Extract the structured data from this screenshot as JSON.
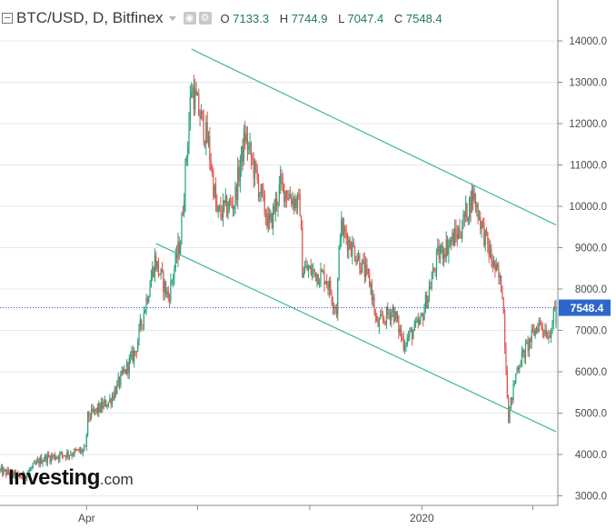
{
  "header": {
    "symbol": "BTC/USD, D, Bitfinex",
    "open_label": "O",
    "open": "7133.3",
    "high_label": "H",
    "high": "7744.9",
    "low_label": "L",
    "low": "7047.4",
    "close_label": "C",
    "close": "7548.4"
  },
  "logo": {
    "brand": "Investing",
    "suffix": ".com"
  },
  "colors": {
    "up": "#26a17a",
    "down": "#e0544d",
    "channel": "#3fb996",
    "price_line": "#2b4fd1",
    "grid": "#e8e8e8"
  },
  "chart_data": {
    "type": "candlestick",
    "title": "BTC/USD, D, Bitfinex",
    "ylim": [
      2800,
      14600
    ],
    "y_ticks": [
      3000.0,
      4000.0,
      5000.0,
      6000.0,
      7000.0,
      8000.0,
      9000.0,
      10000.0,
      11000.0,
      12000.0,
      13000.0,
      14000.0
    ],
    "x_labels": [
      "Apr",
      "2020"
    ],
    "last_price": 7548.4,
    "ohlc_last": {
      "open": 7133.3,
      "high": 7744.9,
      "low": 7047.4,
      "close": 7548.4
    },
    "close_path": [
      {
        "date": "2019-01-20",
        "close": 3600
      },
      {
        "date": "2019-02-07",
        "close": 3450
      },
      {
        "date": "2019-02-24",
        "close": 3900
      },
      {
        "date": "2019-03-31",
        "close": 4100
      },
      {
        "date": "2019-04-02",
        "close": 4900
      },
      {
        "date": "2019-04-20",
        "close": 5300
      },
      {
        "date": "2019-05-11",
        "close": 6500
      },
      {
        "date": "2019-05-27",
        "close": 8700
      },
      {
        "date": "2019-06-07",
        "close": 7800
      },
      {
        "date": "2019-06-17",
        "close": 9200
      },
      {
        "date": "2019-06-26",
        "close": 12900
      },
      {
        "date": "2019-07-10",
        "close": 11500
      },
      {
        "date": "2019-07-17",
        "close": 9800
      },
      {
        "date": "2019-07-31",
        "close": 10100
      },
      {
        "date": "2019-08-09",
        "close": 11700
      },
      {
        "date": "2019-08-29",
        "close": 9500
      },
      {
        "date": "2019-09-07",
        "close": 10500
      },
      {
        "date": "2019-09-23",
        "close": 10000
      },
      {
        "date": "2019-09-25",
        "close": 8500
      },
      {
        "date": "2019-10-14",
        "close": 8300
      },
      {
        "date": "2019-10-23",
        "close": 7500
      },
      {
        "date": "2019-10-26",
        "close": 9500
      },
      {
        "date": "2019-11-09",
        "close": 8800
      },
      {
        "date": "2019-11-20",
        "close": 8100
      },
      {
        "date": "2019-11-25",
        "close": 7100
      },
      {
        "date": "2019-12-08",
        "close": 7500
      },
      {
        "date": "2019-12-17",
        "close": 6700
      },
      {
        "date": "2019-12-31",
        "close": 7200
      },
      {
        "date": "2020-01-14",
        "close": 8800
      },
      {
        "date": "2020-02-01",
        "close": 9400
      },
      {
        "date": "2020-02-12",
        "close": 10300
      },
      {
        "date": "2020-02-26",
        "close": 8800
      },
      {
        "date": "2020-03-07",
        "close": 8000
      },
      {
        "date": "2020-03-12",
        "close": 4900
      },
      {
        "date": "2020-03-19",
        "close": 6100
      },
      {
        "date": "2020-04-06",
        "close": 7200
      },
      {
        "date": "2020-04-14",
        "close": 6900
      },
      {
        "date": "2020-04-20",
        "close": 7548.4
      }
    ],
    "channel_lines": [
      {
        "from": {
          "date": "2019-06-26",
          "price": 13800
        },
        "to": {
          "date": "2020-04-20",
          "price": 9550
        }
      },
      {
        "from": {
          "date": "2019-05-28",
          "price": 9100
        },
        "to": {
          "date": "2020-04-20",
          "price": 4550
        }
      }
    ],
    "grid": true
  }
}
